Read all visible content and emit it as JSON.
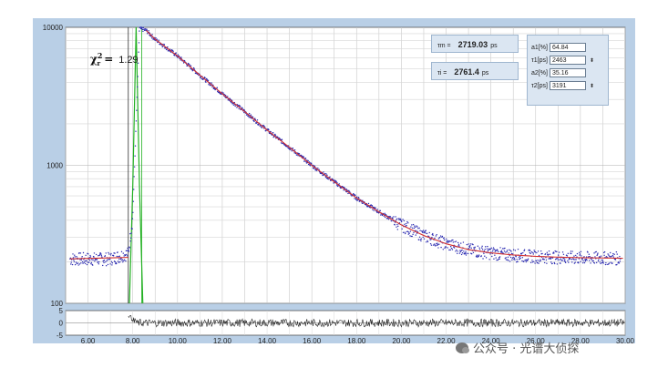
{
  "chart_data": [
    {
      "type": "scatter",
      "title": "",
      "xlabel": "",
      "ylabel": "",
      "yscale": "log",
      "xlim": [
        5.0,
        30.0
      ],
      "ylim": [
        100,
        10000
      ],
      "grid": true,
      "x_ticks": [
        "6.00",
        "8.00",
        "10.00",
        "12.00",
        "14.00",
        "16.00",
        "18.00",
        "20.00",
        "22.00",
        "24.00",
        "26.00",
        "28.00",
        "30.00"
      ],
      "y_ticks": [
        "100",
        "1000",
        "10000"
      ],
      "series": [
        {
          "kind": "decay-data-points",
          "color": "#2a2ab0",
          "x": [
            5.2,
            6.0,
            7.0,
            7.8,
            8.0,
            8.3,
            8.6,
            9.0,
            10.0,
            11.0,
            12.0,
            13.0,
            14.0,
            15.0,
            16.0,
            17.0,
            18.0,
            19.0,
            20.0,
            21.0,
            22.0,
            23.0,
            24.0,
            25.0,
            26.0,
            27.0,
            28.0,
            29.0,
            30.0
          ],
          "y": [
            210,
            210,
            210,
            230,
            420,
            9800,
            9500,
            8200,
            6200,
            4500,
            3300,
            2450,
            1800,
            1350,
            1000,
            760,
            580,
            460,
            370,
            310,
            270,
            245,
            232,
            224,
            219,
            216,
            214,
            213,
            212
          ]
        },
        {
          "kind": "fit-curve",
          "color": "#d23030",
          "x": [
            8.6,
            9.0,
            10.0,
            11.0,
            12.0,
            13.0,
            14.0,
            15.0,
            16.0,
            17.0,
            18.0,
            19.0,
            20.0,
            21.0,
            22.0,
            23.0,
            24.0,
            25.0,
            26.0,
            27.0,
            28.0,
            29.0,
            30.0
          ],
          "y": [
            9500,
            8200,
            6200,
            4500,
            3300,
            2450,
            1800,
            1350,
            1000,
            760,
            580,
            460,
            370,
            310,
            270,
            245,
            232,
            224,
            219,
            216,
            214,
            213,
            212
          ]
        },
        {
          "kind": "irf",
          "color": "#22b022",
          "x": [
            7.85,
            8.0,
            8.15,
            8.3,
            8.45
          ],
          "y": [
            100,
            700,
            10000,
            700,
            100
          ]
        }
      ]
    },
    {
      "type": "line",
      "title": "",
      "xlabel": "",
      "ylabel": "",
      "ylim": [
        -5,
        5
      ],
      "y_ticks": [
        "5",
        "0",
        "-5"
      ],
      "series": [
        {
          "kind": "residuals",
          "color": "#222222",
          "x": [
            7.8,
            8.0,
            30.0
          ],
          "y": [
            0,
            3,
            0
          ]
        }
      ]
    }
  ],
  "chi": {
    "symbol": "χ",
    "sup": "2",
    "sub": "r",
    "eq": "=",
    "value": "1.29"
  },
  "readouts": [
    {
      "label": "τm =",
      "value": "2719.03",
      "unit": "ps"
    },
    {
      "label": "τi =",
      "value": "2761.4",
      "unit": "ps"
    }
  ],
  "fit_params": [
    {
      "label": "a1[%]",
      "value": "64.84",
      "spinner": false
    },
    {
      "label": "τ1[ps]",
      "value": "2463",
      "spinner": true
    },
    {
      "label": "a2[%]",
      "value": "35.16",
      "spinner": false
    },
    {
      "label": "τ2[ps]",
      "value": "3191",
      "spinner": true
    }
  ],
  "watermark": "公众号 · 光谱大侦探"
}
